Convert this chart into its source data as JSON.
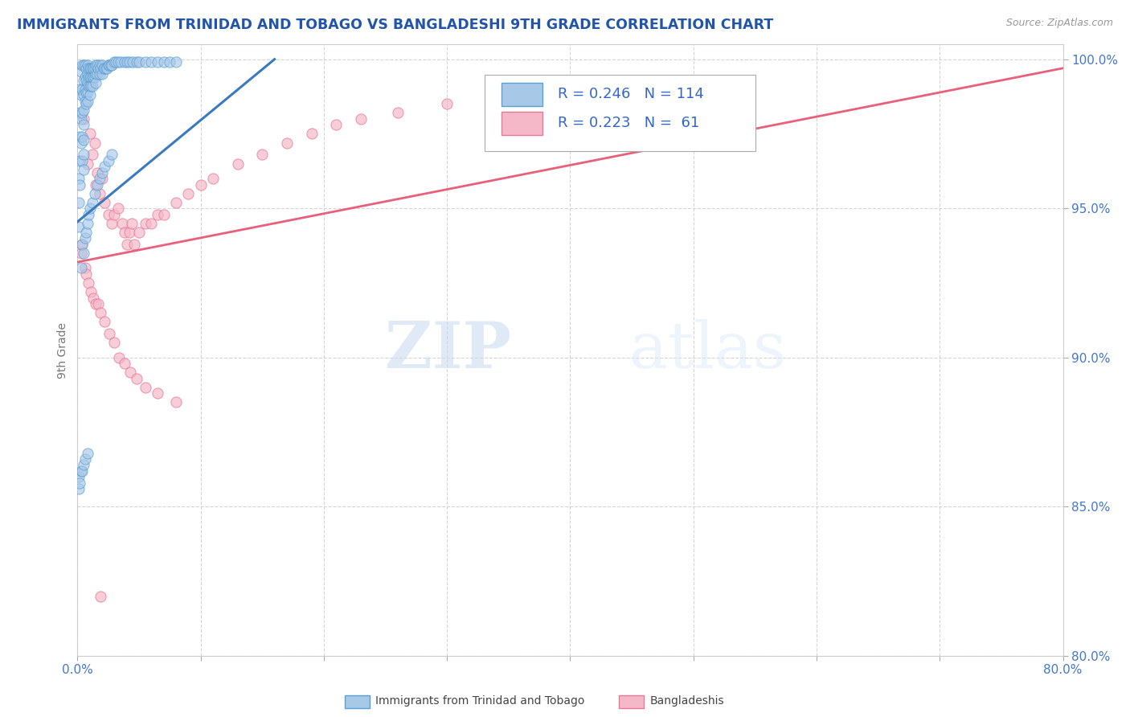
{
  "title": "IMMIGRANTS FROM TRINIDAD AND TOBAGO VS BANGLADESHI 9TH GRADE CORRELATION CHART",
  "source": "Source: ZipAtlas.com",
  "ylabel": "9th Grade",
  "xlim": [
    0.0,
    0.8
  ],
  "ylim": [
    0.8,
    1.005
  ],
  "xticks": [
    0.0,
    0.1,
    0.2,
    0.3,
    0.4,
    0.5,
    0.6,
    0.7,
    0.8
  ],
  "yticks": [
    0.8,
    0.85,
    0.9,
    0.95,
    1.0
  ],
  "xtick_labels": [
    "0.0%",
    "",
    "",
    "",
    "",
    "",
    "",
    "",
    "80.0%"
  ],
  "ytick_labels": [
    "80.0%",
    "85.0%",
    "90.0%",
    "95.0%",
    "100.0%"
  ],
  "legend_R1": "0.246",
  "legend_N1": "114",
  "legend_R2": "0.223",
  "legend_N2": " 61",
  "blue_color": "#a8c8e8",
  "blue_edge": "#5a9fd4",
  "pink_color": "#f4b8c8",
  "pink_edge": "#e87898",
  "line_blue": "#3a7abf",
  "line_pink": "#e8607a",
  "watermark_zip": "ZIP",
  "watermark_atlas": "atlas",
  "title_color": "#2255aa",
  "tick_color": "#4477cc",
  "legend_text_color": "#3366cc",
  "blue_scatter_x": [
    0.001,
    0.001,
    0.001,
    0.002,
    0.002,
    0.002,
    0.002,
    0.002,
    0.003,
    0.003,
    0.003,
    0.003,
    0.004,
    0.004,
    0.004,
    0.004,
    0.004,
    0.005,
    0.005,
    0.005,
    0.005,
    0.005,
    0.005,
    0.005,
    0.005,
    0.006,
    0.006,
    0.006,
    0.006,
    0.007,
    0.007,
    0.007,
    0.007,
    0.008,
    0.008,
    0.008,
    0.008,
    0.008,
    0.009,
    0.009,
    0.009,
    0.01,
    0.01,
    0.01,
    0.01,
    0.011,
    0.011,
    0.011,
    0.012,
    0.012,
    0.012,
    0.013,
    0.013,
    0.014,
    0.014,
    0.015,
    0.015,
    0.015,
    0.016,
    0.016,
    0.017,
    0.018,
    0.018,
    0.019,
    0.02,
    0.02,
    0.021,
    0.022,
    0.023,
    0.024,
    0.025,
    0.026,
    0.027,
    0.028,
    0.03,
    0.031,
    0.033,
    0.035,
    0.038,
    0.04,
    0.042,
    0.045,
    0.048,
    0.05,
    0.055,
    0.06,
    0.065,
    0.07,
    0.075,
    0.08,
    0.003,
    0.004,
    0.005,
    0.006,
    0.007,
    0.008,
    0.009,
    0.01,
    0.012,
    0.014,
    0.016,
    0.018,
    0.02,
    0.022,
    0.025,
    0.028,
    0.001,
    0.001,
    0.002,
    0.003,
    0.004,
    0.005,
    0.006,
    0.008
  ],
  "blue_scatter_y": [
    0.96,
    0.952,
    0.944,
    0.99,
    0.982,
    0.974,
    0.966,
    0.958,
    0.996,
    0.988,
    0.98,
    0.972,
    0.998,
    0.99,
    0.982,
    0.974,
    0.966,
    0.998,
    0.993,
    0.988,
    0.983,
    0.978,
    0.973,
    0.968,
    0.963,
    0.998,
    0.994,
    0.99,
    0.986,
    0.997,
    0.993,
    0.989,
    0.985,
    0.998,
    0.995,
    0.992,
    0.989,
    0.986,
    0.997,
    0.994,
    0.991,
    0.997,
    0.994,
    0.991,
    0.988,
    0.997,
    0.994,
    0.991,
    0.997,
    0.994,
    0.991,
    0.997,
    0.994,
    0.997,
    0.994,
    0.998,
    0.995,
    0.992,
    0.998,
    0.995,
    0.997,
    0.998,
    0.995,
    0.997,
    0.998,
    0.995,
    0.997,
    0.997,
    0.997,
    0.997,
    0.998,
    0.998,
    0.998,
    0.998,
    0.999,
    0.999,
    0.999,
    0.999,
    0.999,
    0.999,
    0.999,
    0.999,
    0.999,
    0.999,
    0.999,
    0.999,
    0.999,
    0.999,
    0.999,
    0.999,
    0.93,
    0.938,
    0.935,
    0.94,
    0.942,
    0.945,
    0.948,
    0.95,
    0.952,
    0.955,
    0.958,
    0.96,
    0.962,
    0.964,
    0.966,
    0.968,
    0.86,
    0.856,
    0.858,
    0.862,
    0.862,
    0.864,
    0.866,
    0.868
  ],
  "pink_scatter_x": [
    0.005,
    0.008,
    0.01,
    0.012,
    0.014,
    0.015,
    0.016,
    0.018,
    0.02,
    0.022,
    0.025,
    0.028,
    0.03,
    0.033,
    0.036,
    0.038,
    0.04,
    0.042,
    0.044,
    0.046,
    0.05,
    0.055,
    0.06,
    0.065,
    0.07,
    0.08,
    0.09,
    0.1,
    0.11,
    0.13,
    0.15,
    0.17,
    0.19,
    0.21,
    0.23,
    0.26,
    0.3,
    0.35,
    0.4,
    0.45,
    0.003,
    0.004,
    0.006,
    0.007,
    0.009,
    0.011,
    0.013,
    0.015,
    0.017,
    0.019,
    0.022,
    0.026,
    0.03,
    0.034,
    0.038,
    0.043,
    0.048,
    0.055,
    0.065,
    0.08,
    0.019
  ],
  "pink_scatter_y": [
    0.98,
    0.965,
    0.975,
    0.968,
    0.972,
    0.958,
    0.962,
    0.955,
    0.96,
    0.952,
    0.948,
    0.945,
    0.948,
    0.95,
    0.945,
    0.942,
    0.938,
    0.942,
    0.945,
    0.938,
    0.942,
    0.945,
    0.945,
    0.948,
    0.948,
    0.952,
    0.955,
    0.958,
    0.96,
    0.965,
    0.968,
    0.972,
    0.975,
    0.978,
    0.98,
    0.982,
    0.985,
    0.988,
    0.99,
    0.992,
    0.935,
    0.938,
    0.93,
    0.928,
    0.925,
    0.922,
    0.92,
    0.918,
    0.918,
    0.915,
    0.912,
    0.908,
    0.905,
    0.9,
    0.898,
    0.895,
    0.893,
    0.89,
    0.888,
    0.885,
    0.82
  ],
  "blue_trendline_x": [
    0.0,
    0.16
  ],
  "blue_trendline_y": [
    0.9455,
    1.0
  ],
  "pink_trendline_x": [
    0.0,
    0.8
  ],
  "pink_trendline_y": [
    0.932,
    0.997
  ]
}
